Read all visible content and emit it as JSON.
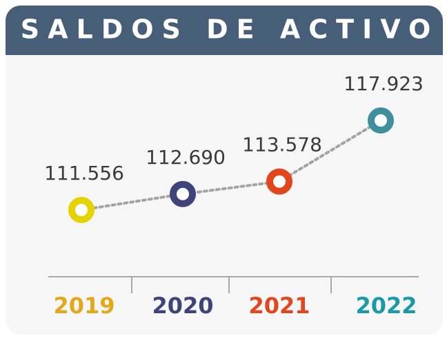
{
  "chart_data": {
    "type": "line",
    "title": "SALDOS DE ACTIVO",
    "categories": [
      "2019",
      "2020",
      "2021",
      "2022"
    ],
    "values": [
      111.556,
      112.69,
      113.578,
      117.923
    ],
    "value_labels": [
      "111.556",
      "112.690",
      "113.578",
      "117.923"
    ],
    "colors": [
      "#e6d200",
      "#3e4479",
      "#e2461c",
      "#3f8f9c"
    ],
    "label_colors": [
      "#e2a81a",
      "#3e4479",
      "#e2461c",
      "#1a9aa6"
    ],
    "line_color": "#a3a3a3"
  }
}
